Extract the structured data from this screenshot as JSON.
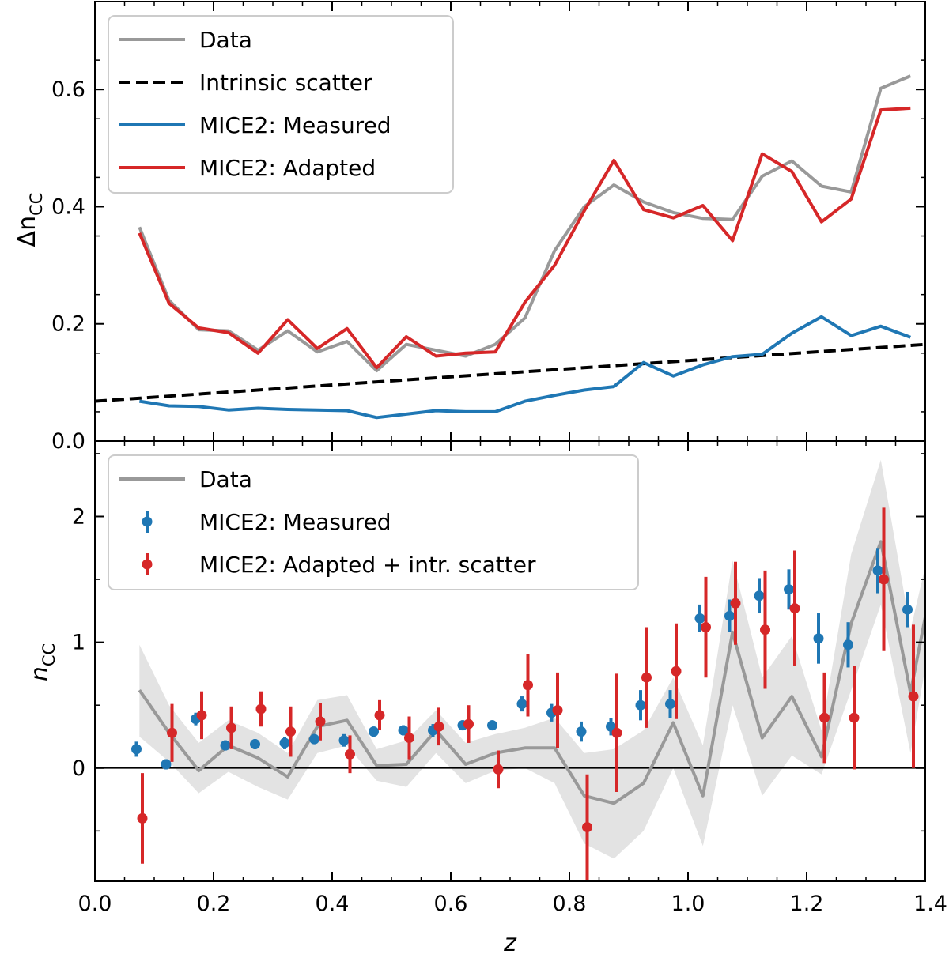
{
  "chart_data": [
    {
      "id": "top",
      "type": "line",
      "ylabel_main": "Δn",
      "ylabel_sub": "CC",
      "xlim": [
        0.0,
        1.4
      ],
      "ylim": [
        0.0,
        0.75
      ],
      "yticks": [
        0.0,
        0.2,
        0.4,
        0.6
      ],
      "ytick_labels": [
        "0.0",
        "0.2",
        "0.4",
        "0.6"
      ],
      "legend": {
        "loc": "upper-left",
        "entries": [
          "Data",
          "Intrinsic scatter",
          "MICE2: Measured",
          "MICE2: Adapted"
        ]
      },
      "colors": {
        "data": "#999999",
        "scatter": "#000000",
        "measured": "#1f77b4",
        "adapted": "#d62728"
      },
      "series": [
        {
          "name": "Data",
          "style": "solid",
          "x": [
            0.075,
            0.125,
            0.175,
            0.225,
            0.275,
            0.325,
            0.375,
            0.425,
            0.475,
            0.525,
            0.575,
            0.625,
            0.675,
            0.725,
            0.775,
            0.825,
            0.875,
            0.925,
            0.975,
            1.025,
            1.075,
            1.125,
            1.175,
            1.225,
            1.275,
            1.325,
            1.375
          ],
          "y": [
            0.365,
            0.24,
            0.19,
            0.188,
            0.155,
            0.188,
            0.152,
            0.17,
            0.12,
            0.165,
            0.155,
            0.145,
            0.165,
            0.21,
            0.325,
            0.4,
            0.437,
            0.408,
            0.39,
            0.38,
            0.378,
            0.452,
            0.478,
            0.435,
            0.425,
            0.602,
            0.623
          ]
        },
        {
          "name": "Intrinsic scatter",
          "style": "dashed",
          "x": [
            0.0,
            1.4
          ],
          "y": [
            0.068,
            0.165
          ]
        },
        {
          "name": "MICE2: Measured",
          "style": "solid",
          "x": [
            0.075,
            0.125,
            0.175,
            0.225,
            0.275,
            0.325,
            0.375,
            0.425,
            0.475,
            0.525,
            0.575,
            0.625,
            0.675,
            0.725,
            0.775,
            0.825,
            0.875,
            0.925,
            0.975,
            1.025,
            1.075,
            1.125,
            1.175,
            1.225,
            1.275,
            1.325,
            1.375
          ],
          "y": [
            0.068,
            0.06,
            0.059,
            0.053,
            0.056,
            0.054,
            0.053,
            0.052,
            0.04,
            0.046,
            0.052,
            0.05,
            0.05,
            0.068,
            0.078,
            0.087,
            0.093,
            0.134,
            0.111,
            0.13,
            0.144,
            0.148,
            0.184,
            0.212,
            0.18,
            0.196,
            0.177
          ]
        },
        {
          "name": "MICE2: Adapted",
          "style": "solid",
          "x": [
            0.075,
            0.125,
            0.175,
            0.225,
            0.275,
            0.325,
            0.375,
            0.425,
            0.475,
            0.525,
            0.575,
            0.625,
            0.675,
            0.725,
            0.775,
            0.825,
            0.875,
            0.925,
            0.975,
            1.025,
            1.075,
            1.125,
            1.175,
            1.225,
            1.275,
            1.325,
            1.375
          ],
          "y": [
            0.355,
            0.235,
            0.193,
            0.185,
            0.15,
            0.207,
            0.158,
            0.192,
            0.125,
            0.178,
            0.145,
            0.15,
            0.152,
            0.237,
            0.3,
            0.393,
            0.479,
            0.395,
            0.381,
            0.402,
            0.342,
            0.49,
            0.46,
            0.374,
            0.413,
            0.565,
            0.568
          ]
        }
      ]
    },
    {
      "id": "bottom",
      "type": "scatter",
      "xlabel": "z",
      "ylabel_main": "n",
      "ylabel_sub": "CC",
      "xlim": [
        0.0,
        1.4
      ],
      "ylim": [
        -0.9,
        2.6
      ],
      "xticks": [
        0.0,
        0.2,
        0.4,
        0.6,
        0.8,
        1.0,
        1.2,
        1.4
      ],
      "xtick_labels": [
        "0.0",
        "0.2",
        "0.4",
        "0.6",
        "0.8",
        "1.0",
        "1.2",
        "1.4"
      ],
      "yticks": [
        0,
        1,
        2
      ],
      "ytick_labels": [
        "0",
        "1",
        "2"
      ],
      "hline": 0,
      "legend": {
        "loc": "upper-left",
        "entries": [
          "Data",
          "MICE2: Measured",
          "MICE2: Adapted + intr. scatter"
        ]
      },
      "colors": {
        "data": "#999999",
        "band": "#e3e3e3",
        "measured": "#1f77b4",
        "adapted": "#d62728",
        "zero": "#000000"
      },
      "data_line": {
        "name": "Data",
        "x": [
          0.075,
          0.125,
          0.175,
          0.225,
          0.275,
          0.325,
          0.375,
          0.425,
          0.475,
          0.525,
          0.575,
          0.625,
          0.675,
          0.725,
          0.775,
          0.825,
          0.875,
          0.925,
          0.975,
          1.025,
          1.075,
          1.125,
          1.175,
          1.225,
          1.275,
          1.325,
          1.375,
          1.4
        ],
        "y": [
          0.62,
          0.28,
          -0.02,
          0.18,
          0.08,
          -0.07,
          0.33,
          0.38,
          0.02,
          0.03,
          0.3,
          0.03,
          0.12,
          0.16,
          0.16,
          -0.22,
          -0.28,
          -0.12,
          0.36,
          -0.22,
          1.08,
          0.24,
          0.57,
          0.09,
          1.15,
          1.8,
          0.6,
          1.2
        ],
        "band_lo": [
          0.25,
          0.05,
          -0.2,
          -0.03,
          -0.15,
          -0.25,
          0.12,
          0.18,
          -0.1,
          -0.15,
          0.12,
          -0.12,
          -0.02,
          0.0,
          -0.12,
          -0.6,
          -0.72,
          -0.5,
          0.0,
          -0.62,
          0.5,
          -0.22,
          0.1,
          -0.05,
          0.62,
          1.3,
          0.12,
          0.8
        ],
        "band_hi": [
          0.98,
          0.5,
          0.2,
          0.38,
          0.28,
          0.12,
          0.54,
          0.58,
          0.15,
          0.22,
          0.46,
          0.2,
          0.27,
          0.32,
          0.4,
          0.12,
          0.15,
          0.3,
          0.72,
          0.18,
          1.65,
          0.72,
          1.05,
          0.3,
          1.7,
          2.45,
          1.1,
          1.6
        ]
      },
      "series": [
        {
          "name": "MICE2: Measured",
          "x": [
            0.07,
            0.12,
            0.17,
            0.22,
            0.27,
            0.32,
            0.37,
            0.42,
            0.47,
            0.52,
            0.57,
            0.62,
            0.67,
            0.72,
            0.77,
            0.82,
            0.87,
            0.92,
            0.97,
            1.02,
            1.07,
            1.12,
            1.17,
            1.22,
            1.27,
            1.32,
            1.37
          ],
          "y": [
            0.15,
            0.03,
            0.39,
            0.18,
            0.19,
            0.2,
            0.23,
            0.22,
            0.29,
            0.3,
            0.3,
            0.34,
            0.34,
            0.51,
            0.44,
            0.29,
            0.33,
            0.5,
            0.51,
            1.19,
            1.21,
            1.37,
            1.42,
            1.03,
            0.98,
            1.57,
            1.26
          ],
          "err": [
            0.06,
            0.04,
            0.05,
            0.04,
            0.04,
            0.05,
            0.04,
            0.05,
            0.04,
            0.04,
            0.05,
            0.04,
            0.04,
            0.06,
            0.07,
            0.08,
            0.07,
            0.12,
            0.11,
            0.11,
            0.13,
            0.14,
            0.16,
            0.2,
            0.18,
            0.18,
            0.14
          ]
        },
        {
          "name": "MICE2: Adapted + intr. scatter",
          "x": [
            0.08,
            0.13,
            0.18,
            0.23,
            0.28,
            0.33,
            0.38,
            0.43,
            0.48,
            0.53,
            0.58,
            0.63,
            0.68,
            0.73,
            0.78,
            0.83,
            0.88,
            0.93,
            0.98,
            1.03,
            1.08,
            1.13,
            1.18,
            1.23,
            1.28,
            1.33,
            1.38
          ],
          "y": [
            -0.4,
            0.28,
            0.42,
            0.32,
            0.47,
            0.29,
            0.37,
            0.11,
            0.42,
            0.24,
            0.33,
            0.35,
            -0.01,
            0.66,
            0.46,
            -0.47,
            0.28,
            0.72,
            0.77,
            1.12,
            1.31,
            1.1,
            1.27,
            0.4,
            0.4,
            1.5,
            0.57
          ],
          "err": [
            0.36,
            0.23,
            0.19,
            0.17,
            0.14,
            0.2,
            0.15,
            0.15,
            0.12,
            0.17,
            0.15,
            0.15,
            0.15,
            0.25,
            0.3,
            0.42,
            0.47,
            0.4,
            0.38,
            0.4,
            0.33,
            0.47,
            0.46,
            0.36,
            0.41,
            0.57,
            0.57
          ]
        }
      ]
    }
  ]
}
